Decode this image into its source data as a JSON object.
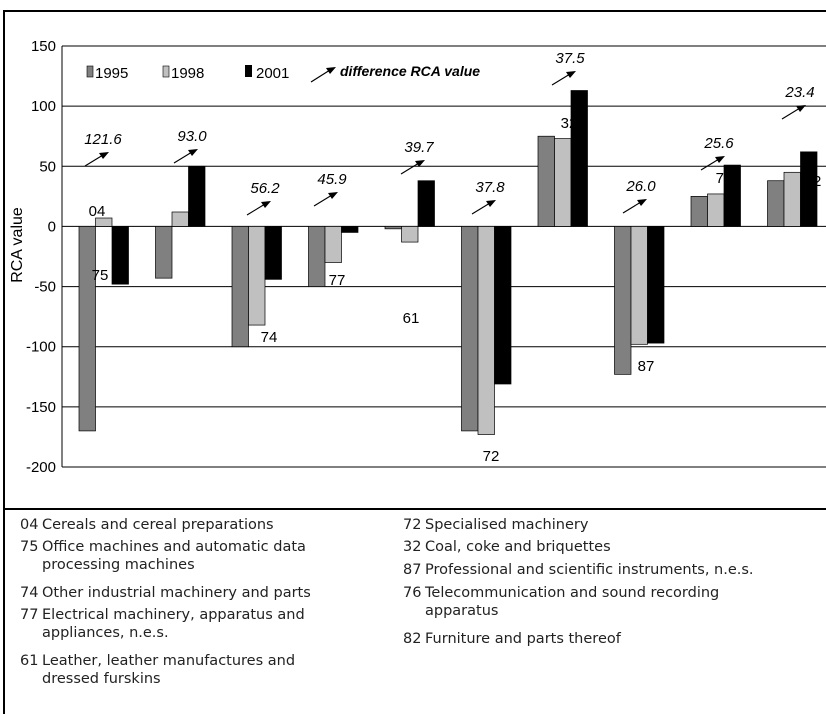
{
  "chart_data": {
    "type": "bar",
    "ylabel": "RCA value",
    "ylim": [
      -200,
      150
    ],
    "yticks": [
      "150",
      "100",
      "50",
      "0",
      "-50",
      "-100",
      "-150",
      "-200"
    ],
    "grid": true,
    "legend_position": "top-left",
    "series": [
      {
        "name": "1995",
        "color": "#808080",
        "values": [
          -170,
          -43,
          -100,
          -50,
          -2,
          -170,
          75,
          -123,
          25,
          38
        ]
      },
      {
        "name": "1998",
        "color": "#c0c0c0",
        "values": [
          7,
          12,
          -82,
          -30,
          -13,
          -173,
          73,
          -98,
          27,
          45
        ]
      },
      {
        "name": "2001",
        "color": "#000000",
        "values": [
          -48,
          50,
          -44,
          -5,
          38,
          -131,
          113,
          -97,
          51,
          62
        ]
      }
    ],
    "legend_arrow_label": "difference RCA value",
    "categories": [
      "04",
      "75",
      "74",
      "77",
      "61",
      "72",
      "32",
      "87",
      "76",
      "82"
    ],
    "differences": [
      "121.6",
      "93.0",
      "56.2",
      "45.9",
      "39.7",
      "37.8",
      "37.5",
      "26.0",
      "25.6",
      "23.4"
    ]
  },
  "notes_left": [
    {
      "code": "04",
      "lines": [
        "Cereals and cereal preparations"
      ]
    },
    {
      "code": "75",
      "lines": [
        "Office machines and automatic data",
        "processing machines"
      ]
    },
    {
      "code": "74",
      "lines": [
        "Other industrial machinery and parts"
      ]
    },
    {
      "code": "77",
      "lines": [
        "Electrical machinery, apparatus and",
        "appliances, n.e.s."
      ]
    },
    {
      "code": "61",
      "lines": [
        "Leather, leather manufactures and",
        "dressed furskins"
      ]
    }
  ],
  "notes_right": [
    {
      "code": "72",
      "lines": [
        "Specialised machinery"
      ]
    },
    {
      "code": "32",
      "lines": [
        "Coal, coke and briquettes"
      ]
    },
    {
      "code": "87",
      "lines": [
        "Professional and scientific instruments, n.e.s."
      ]
    },
    {
      "code": "76",
      "lines": [
        "Telecommunication and sound recording",
        "apparatus"
      ]
    },
    {
      "code": "82",
      "lines": [
        "Furniture and parts thereof"
      ]
    }
  ]
}
